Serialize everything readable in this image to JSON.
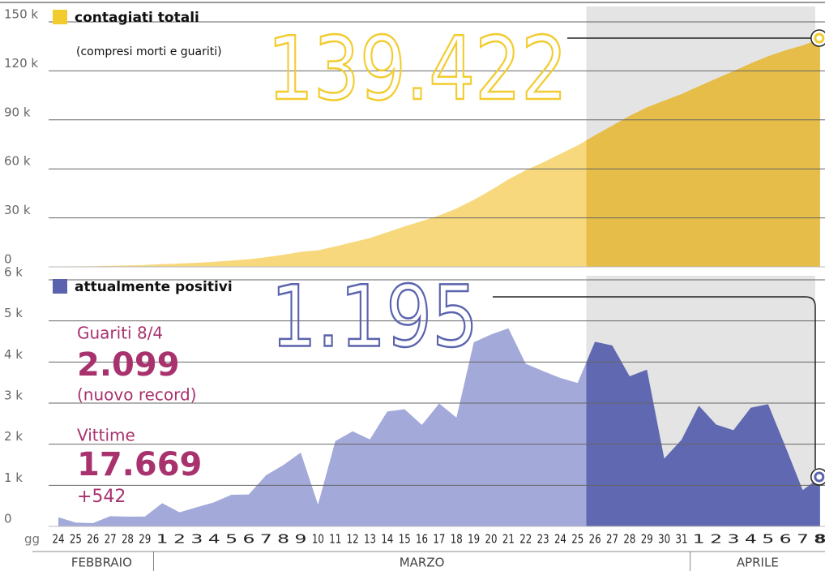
{
  "chart_data": [
    {
      "type": "area",
      "legend": "contagiati totali",
      "legend_sub": "(compresi morti e guariti)",
      "x_label": "gg",
      "months": [
        "FEBBRAIO",
        "MARZO",
        "APRILE"
      ],
      "categories": [
        "24",
        "25",
        "26",
        "27",
        "28",
        "29",
        "1",
        "2",
        "3",
        "4",
        "5",
        "6",
        "7",
        "8",
        "9",
        "10",
        "11",
        "12",
        "13",
        "14",
        "15",
        "16",
        "17",
        "18",
        "19",
        "20",
        "21",
        "22",
        "23",
        "24",
        "25",
        "26",
        "27",
        "28",
        "29",
        "30",
        "31",
        "1",
        "2",
        "3",
        "4",
        "5",
        "6",
        "7",
        "8"
      ],
      "values": [
        229,
        322,
        400,
        650,
        888,
        1128,
        1694,
        2036,
        2502,
        3089,
        3858,
        4636,
        5883,
        7375,
        9172,
        10149,
        12462,
        15113,
        17660,
        21157,
        24747,
        27980,
        31506,
        35713,
        41035,
        47021,
        53578,
        59138,
        63927,
        69176,
        74386,
        80539,
        86498,
        92472,
        97689,
        101739,
        105792,
        110574,
        115242,
        119827,
        124632,
        128948,
        132547,
        135586,
        139422
      ],
      "value_labels": [
        null,
        null,
        null,
        null,
        null,
        null,
        null,
        null,
        null,
        null,
        null,
        null,
        null,
        null,
        null,
        null,
        null,
        null,
        null,
        null,
        null,
        null,
        null,
        null,
        null,
        null,
        null,
        null,
        null,
        null,
        null,
        null,
        null,
        null,
        null,
        null,
        null,
        null,
        null,
        null,
        null,
        null,
        null,
        null,
        "139.422"
      ],
      "color": "#f7d87c",
      "highlight_color": "#e6bd48",
      "accent": "#f2cc2e",
      "ylim": [
        0,
        150000
      ],
      "yticks": [
        0,
        {
          "value": 30000,
          "label": "30 k"
        },
        {
          "value": 60000,
          "label": "60 k"
        },
        {
          "value": 90000,
          "label": "90 k"
        },
        {
          "value": 120000,
          "label": "120 k"
        },
        {
          "value": 150000,
          "label": "150 k"
        }
      ],
      "grid": true
    },
    {
      "type": "area",
      "legend": "attualmente positivi",
      "annotations": [
        "Guariti 8/4",
        "2.099",
        "(nuovo record)",
        "Vittime",
        "17.669",
        "+542"
      ],
      "values": [
        221,
        93,
        78,
        250,
        238,
        240,
        566,
        342,
        466,
        587,
        769,
        778,
        1247,
        1492,
        1797,
        529,
        2076,
        2313,
        2116,
        2795,
        2853,
        2470,
        2989,
        2648,
        4480,
        4670,
        4821,
        3957,
        3780,
        3612,
        3491,
        4492,
        4401,
        3651,
        3815,
        1648,
        2107,
        2937,
        2477,
        2339,
        2886,
        2972,
        1941,
        880,
        1195
      ],
      "value_labels": [
        null,
        null,
        null,
        null,
        null,
        null,
        null,
        null,
        null,
        null,
        null,
        null,
        null,
        null,
        null,
        null,
        null,
        null,
        null,
        null,
        null,
        null,
        null,
        null,
        null,
        null,
        null,
        null,
        null,
        null,
        null,
        null,
        null,
        null,
        null,
        null,
        null,
        null,
        null,
        null,
        null,
        null,
        null,
        null,
        "1.195"
      ],
      "color": "#a3aad9",
      "highlight_color": "#5f68b0",
      "accent": "#5a63ad",
      "ylim": [
        0,
        6000
      ],
      "yticks": [
        0,
        {
          "value": 1000,
          "label": "1 k"
        },
        {
          "value": 2000,
          "label": "2 k"
        },
        {
          "value": 3000,
          "label": "3 k"
        },
        {
          "value": 4000,
          "label": "4 k"
        },
        {
          "value": 5000,
          "label": "5 k"
        },
        {
          "value": 6000,
          "label": "6 k"
        }
      ],
      "grid": true
    }
  ]
}
